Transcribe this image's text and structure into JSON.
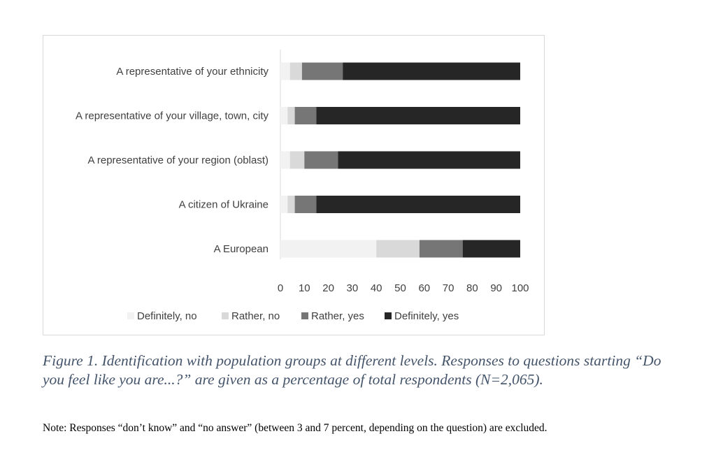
{
  "chart_data": {
    "type": "bar",
    "orientation": "horizontal",
    "stacked": true,
    "categories": [
      "A representative of your ethnicity",
      "A representative of your village, town, city",
      "A representative of your region (oblast)",
      "A citizen of Ukraine",
      "A European"
    ],
    "series": [
      {
        "name": "Definitely, no",
        "color": "#f2f2f2",
        "values": [
          4,
          3,
          4,
          3,
          40
        ]
      },
      {
        "name": "Rather, no",
        "color": "#d9d9d9",
        "values": [
          5,
          3,
          6,
          3,
          18
        ]
      },
      {
        "name": "Rather, yes",
        "color": "#767676",
        "values": [
          17,
          9,
          14,
          9,
          18
        ]
      },
      {
        "name": "Definitely, yes",
        "color": "#262626",
        "values": [
          74,
          85,
          76,
          85,
          24
        ]
      }
    ],
    "xlim": [
      0,
      100
    ],
    "xticks": [
      "0",
      "10",
      "20",
      "30",
      "40",
      "50",
      "60",
      "70",
      "80",
      "90",
      "100"
    ],
    "legend_position": "bottom",
    "grid": false
  },
  "caption": "Figure 1. Identification with population groups at different levels. Responses to questions starting “Do you feel like you are...?” are given as a percentage of total respondents (N=2,065).",
  "note": "Note: Responses “don’t know” and “no answer” (between 3 and 7 percent, depending on the question) are excluded."
}
